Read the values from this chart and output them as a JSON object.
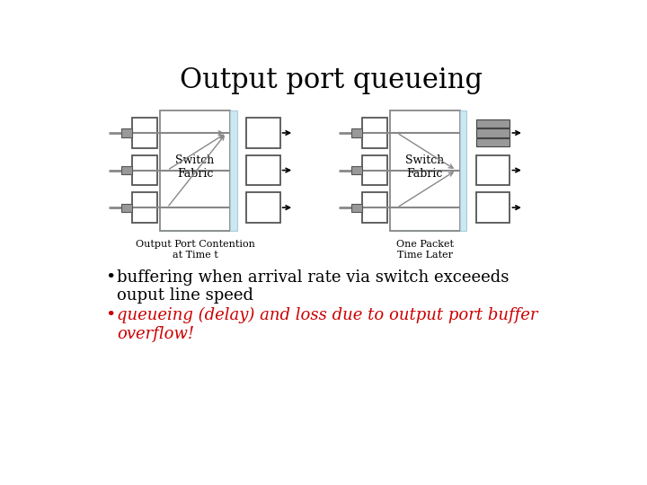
{
  "title": "Output port queueing",
  "title_fontsize": 22,
  "title_font": "serif",
  "bullet1": "buffering when arrival rate via switch exceeeds\nouput line speed",
  "bullet2": "queueing (delay) and loss due to output port buffer\noverflow!",
  "bullet1_color": "#000000",
  "bullet2_color": "#cc0000",
  "bullet_fontsize": 13,
  "bullet_font": "serif",
  "bg_color": "#ffffff",
  "label1": "Output Port Contention\nat Time t",
  "label2": "One Packet\nTime Later",
  "label_fontsize": 8,
  "switch_fabric_text": "Switch\nFabric",
  "sf_fontsize": 9,
  "light_blue": "#cce8f0",
  "box_edge": "#555555",
  "gray_fill": "#999999",
  "dark_fill": "#888888",
  "white_fill": "#ffffff"
}
